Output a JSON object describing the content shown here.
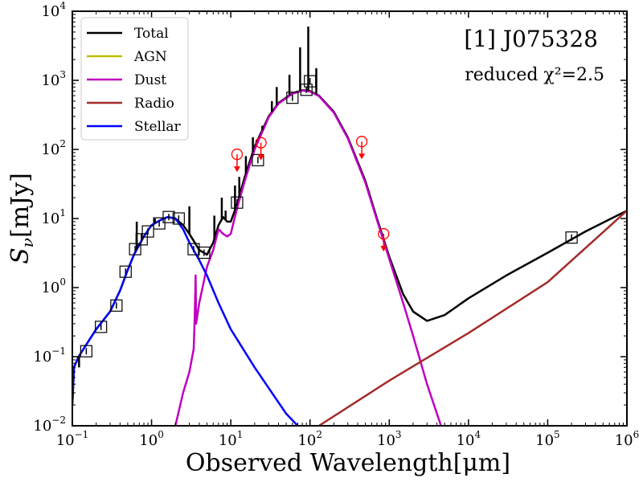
{
  "chart_data": {
    "type": "line",
    "title": "[1] J075328",
    "annotation": "reduced χ²=2.5",
    "xlabel": "Observed Wavelength[μm]",
    "ylabel": "Sν[mJy]",
    "ylabel_parts": {
      "s": "S",
      "sub": "ν",
      "unit": "[mJy]"
    },
    "xscale": "log",
    "yscale": "log",
    "xlim": [
      0.1,
      1000000
    ],
    "ylim": [
      0.01,
      10000
    ],
    "x_ticks": [
      {
        "value": 0.1,
        "base": "10",
        "exp": "−1"
      },
      {
        "value": 1,
        "base": "10",
        "exp": "0"
      },
      {
        "value": 10,
        "base": "10",
        "exp": "1"
      },
      {
        "value": 100,
        "base": "10",
        "exp": "2"
      },
      {
        "value": 1000,
        "base": "10",
        "exp": "3"
      },
      {
        "value": 10000,
        "base": "10",
        "exp": "4"
      },
      {
        "value": 100000,
        "base": "10",
        "exp": "5"
      },
      {
        "value": 1000000,
        "base": "10",
        "exp": "6"
      }
    ],
    "y_ticks": [
      {
        "value": 0.01,
        "base": "10",
        "exp": "−2"
      },
      {
        "value": 0.1,
        "base": "10",
        "exp": "−1"
      },
      {
        "value": 1,
        "base": "10",
        "exp": "0"
      },
      {
        "value": 10,
        "base": "10",
        "exp": "1"
      },
      {
        "value": 100,
        "base": "10",
        "exp": "2"
      },
      {
        "value": 1000,
        "base": "10",
        "exp": "3"
      },
      {
        "value": 10000,
        "base": "10",
        "exp": "4"
      }
    ],
    "legend_position": "top-left",
    "series": [
      {
        "name": "Total",
        "color": "#000000",
        "points": [
          [
            0.1,
            0.02
          ],
          [
            0.105,
            0.07
          ],
          [
            0.12,
            0.1
          ],
          [
            0.15,
            0.15
          ],
          [
            0.2,
            0.25
          ],
          [
            0.3,
            0.45
          ],
          [
            0.4,
            0.9
          ],
          [
            0.5,
            1.8
          ],
          [
            0.6,
            3.0
          ],
          [
            0.8,
            5.5
          ],
          [
            1.0,
            8.0
          ],
          [
            1.3,
            9.5
          ],
          [
            1.6,
            10.5
          ],
          [
            2.0,
            10.0
          ],
          [
            2.5,
            8.0
          ],
          [
            3.0,
            6.0
          ],
          [
            3.5,
            4.5
          ],
          [
            4.0,
            3.5
          ],
          [
            5.0,
            3.0
          ],
          [
            6.0,
            4.5
          ],
          [
            7.0,
            8.0
          ],
          [
            8.0,
            10.5
          ],
          [
            9.0,
            9.0
          ],
          [
            10.0,
            9.0
          ],
          [
            12.0,
            16.0
          ],
          [
            15.0,
            40.0
          ],
          [
            20.0,
            110.0
          ],
          [
            30.0,
            300.0
          ],
          [
            40.0,
            470.0
          ],
          [
            60.0,
            650.0
          ],
          [
            80.0,
            720.0
          ],
          [
            100.0,
            700.0
          ],
          [
            130.0,
            600.0
          ],
          [
            200.0,
            350.0
          ],
          [
            300.0,
            150.0
          ],
          [
            500.0,
            35.0
          ],
          [
            700.0,
            10.0
          ],
          [
            1000.0,
            2.8
          ],
          [
            1500.0,
            0.8
          ],
          [
            2000.0,
            0.45
          ],
          [
            3000.0,
            0.33
          ],
          [
            5000.0,
            0.4
          ],
          [
            10000.0,
            0.7
          ],
          [
            30000.0,
            1.5
          ],
          [
            100000.0,
            3.2
          ],
          [
            300000.0,
            6.5
          ],
          [
            1000000.0,
            13.0
          ]
        ]
      },
      {
        "name": "AGN",
        "color": "#bfbf00",
        "points": []
      },
      {
        "name": "Dust",
        "color": "#bf00bf",
        "points": [
          [
            2.0,
            0.01
          ],
          [
            2.5,
            0.03
          ],
          [
            3.0,
            0.06
          ],
          [
            3.4,
            0.13
          ],
          [
            3.5,
            0.35
          ],
          [
            3.6,
            1.5
          ],
          [
            3.65,
            0.3
          ],
          [
            4.0,
            0.6
          ],
          [
            5.0,
            2.0
          ],
          [
            6.0,
            3.5
          ],
          [
            7.0,
            7.0
          ],
          [
            8.0,
            6.0
          ],
          [
            9.0,
            5.5
          ],
          [
            10.0,
            6.0
          ],
          [
            12.0,
            14.0
          ],
          [
            15.0,
            35.0
          ],
          [
            20.0,
            100.0
          ],
          [
            30.0,
            290.0
          ],
          [
            40.0,
            460.0
          ],
          [
            60.0,
            640.0
          ],
          [
            80.0,
            710.0
          ],
          [
            100.0,
            690.0
          ],
          [
            130.0,
            590.0
          ],
          [
            200.0,
            340.0
          ],
          [
            300.0,
            145.0
          ],
          [
            500.0,
            33.0
          ],
          [
            700.0,
            9.5
          ],
          [
            1000.0,
            2.6
          ],
          [
            1500.0,
            0.6
          ],
          [
            2000.0,
            0.2
          ],
          [
            3000.0,
            0.04
          ],
          [
            4500.0,
            0.01
          ]
        ]
      },
      {
        "name": "Radio",
        "color": "#a52a2a",
        "points": [
          [
            130.0,
            0.01
          ],
          [
            1000.0,
            0.045
          ],
          [
            10000.0,
            0.22
          ],
          [
            100000.0,
            1.2
          ],
          [
            1000000.0,
            13.0
          ]
        ]
      },
      {
        "name": "Stellar",
        "color": "#0000ff",
        "points": [
          [
            0.1,
            0.02
          ],
          [
            0.105,
            0.07
          ],
          [
            0.12,
            0.1
          ],
          [
            0.15,
            0.15
          ],
          [
            0.2,
            0.25
          ],
          [
            0.3,
            0.45
          ],
          [
            0.4,
            0.9
          ],
          [
            0.5,
            1.8
          ],
          [
            0.6,
            3.0
          ],
          [
            0.8,
            5.5
          ],
          [
            1.0,
            8.0
          ],
          [
            1.3,
            9.5
          ],
          [
            1.6,
            10.5
          ],
          [
            2.0,
            10.0
          ],
          [
            2.5,
            7.0
          ],
          [
            3.0,
            4.5
          ],
          [
            4.0,
            2.5
          ],
          [
            5.0,
            1.5
          ],
          [
            7.0,
            0.6
          ],
          [
            10.0,
            0.25
          ],
          [
            20.0,
            0.07
          ],
          [
            50.0,
            0.015
          ],
          [
            70.0,
            0.01
          ]
        ]
      }
    ],
    "spikes": [
      [
        0.1215,
        0.07
      ],
      [
        0.65,
        9.0
      ],
      [
        0.75,
        6.0
      ],
      [
        1.1,
        10.0
      ],
      [
        3.0,
        15.0
      ],
      [
        6.2,
        11.0
      ],
      [
        7.7,
        20.0
      ],
      [
        8.6,
        13.0
      ],
      [
        11.3,
        30.0
      ],
      [
        12.8,
        40.0
      ],
      [
        15.5,
        80.0
      ],
      [
        19.0,
        150.0
      ],
      [
        25.0,
        220.0
      ],
      [
        33.0,
        500.0
      ],
      [
        38.0,
        800.0
      ],
      [
        55.0,
        1200.0
      ],
      [
        75.0,
        3000.0
      ],
      [
        95.0,
        6000.0
      ],
      [
        120.0,
        1500.0
      ]
    ],
    "photometry": [
      [
        0.15,
        0.12
      ],
      [
        0.23,
        0.27
      ],
      [
        0.36,
        0.55
      ],
      [
        0.47,
        1.7
      ],
      [
        0.62,
        3.6
      ],
      [
        0.75,
        5.0
      ],
      [
        0.9,
        6.5
      ],
      [
        1.25,
        8.5
      ],
      [
        1.65,
        10.5
      ],
      [
        2.2,
        10.0
      ],
      [
        3.4,
        3.6
      ],
      [
        4.6,
        3.2
      ],
      [
        12.0,
        17.0
      ],
      [
        22.0,
        70.0
      ],
      [
        60.0,
        560.0
      ],
      [
        90.0,
        730.0
      ],
      [
        100.0,
        970.0
      ],
      [
        200000.0,
        5.3
      ]
    ],
    "upper_limits": [
      [
        12.0,
        85.0
      ],
      [
        24.0,
        125.0
      ],
      [
        450.0,
        130.0
      ],
      [
        850.0,
        6.0
      ]
    ],
    "upper_limit_color": "#ff0000"
  }
}
